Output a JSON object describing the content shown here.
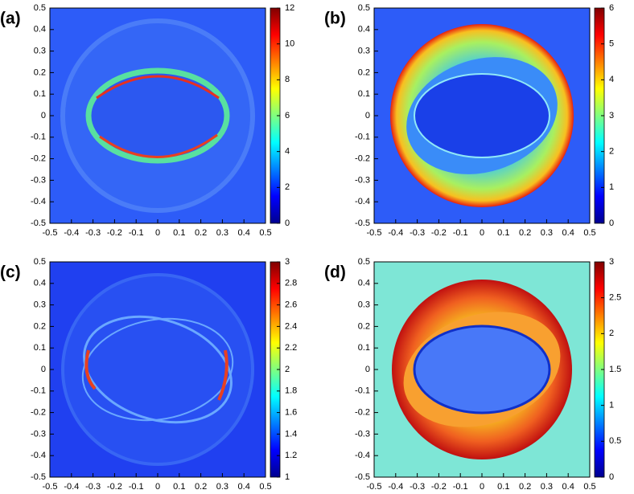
{
  "chart_data": [
    {
      "type": "heatmap",
      "label": "(a)",
      "colormap": "jet",
      "xlim": [
        -0.5,
        0.5
      ],
      "xticks": [
        -0.5,
        -0.4,
        -0.3,
        -0.2,
        -0.1,
        0,
        0.1,
        0.2,
        0.3,
        0.4,
        0.5
      ],
      "ylim": [
        -0.5,
        0.5
      ],
      "yticks": [
        -0.5,
        -0.4,
        -0.3,
        -0.2,
        -0.1,
        0,
        0.1,
        0.2,
        0.3,
        0.4,
        0.5
      ],
      "colorbar": {
        "lim": [
          0,
          12
        ],
        "ticks": [
          0,
          2,
          4,
          6,
          8,
          10,
          12
        ]
      }
    },
    {
      "type": "heatmap",
      "label": "(b)",
      "colormap": "jet",
      "xlim": [
        -0.5,
        0.5
      ],
      "xticks": [
        -0.5,
        -0.4,
        -0.3,
        -0.2,
        -0.1,
        0,
        0.1,
        0.2,
        0.3,
        0.4,
        0.5
      ],
      "ylim": [
        -0.5,
        0.5
      ],
      "yticks": [
        -0.5,
        -0.4,
        -0.3,
        -0.2,
        -0.1,
        0,
        0.1,
        0.2,
        0.3,
        0.4,
        0.5
      ],
      "colorbar": {
        "lim": [
          0,
          6
        ],
        "ticks": [
          0,
          1,
          2,
          3,
          4,
          5,
          6
        ]
      }
    },
    {
      "type": "heatmap",
      "label": "(c)",
      "colormap": "jet",
      "xlim": [
        -0.5,
        0.5
      ],
      "xticks": [
        -0.5,
        -0.4,
        -0.3,
        -0.2,
        -0.1,
        0,
        0.1,
        0.2,
        0.3,
        0.4,
        0.5
      ],
      "ylim": [
        -0.5,
        0.5
      ],
      "yticks": [
        -0.5,
        -0.4,
        -0.3,
        -0.2,
        -0.1,
        0,
        0.1,
        0.2,
        0.3,
        0.4,
        0.5
      ],
      "colorbar": {
        "lim": [
          1,
          3
        ],
        "ticks": [
          1,
          1.2,
          1.4,
          1.6,
          1.8,
          2,
          2.2,
          2.4,
          2.6,
          2.8,
          3
        ]
      }
    },
    {
      "type": "heatmap",
      "label": "(d)",
      "colormap": "jet",
      "xlim": [
        -0.5,
        0.5
      ],
      "xticks": [
        -0.5,
        -0.4,
        -0.3,
        -0.2,
        -0.1,
        0,
        0.1,
        0.2,
        0.3,
        0.4,
        0.5
      ],
      "ylim": [
        -0.5,
        0.5
      ],
      "yticks": [
        -0.5,
        -0.4,
        -0.3,
        -0.2,
        -0.1,
        0,
        0.1,
        0.2,
        0.3,
        0.4,
        0.5
      ],
      "colorbar": {
        "lim": [
          0,
          3
        ],
        "ticks": [
          0,
          0.5,
          1,
          1.5,
          2,
          2.5,
          3
        ]
      }
    }
  ]
}
